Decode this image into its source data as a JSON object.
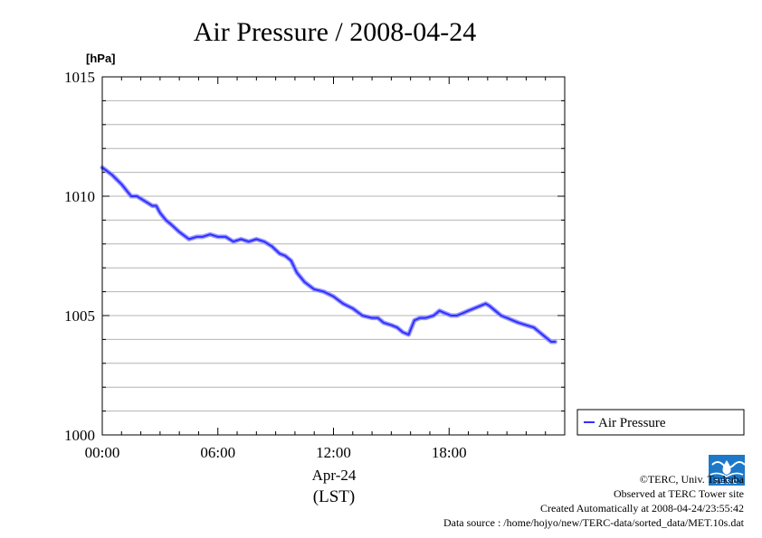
{
  "chart_data": {
    "type": "line",
    "title": "Air Pressure / 2008-04-24",
    "ylabel": "[hPa]",
    "ylim": [
      1000,
      1015
    ],
    "xlim": [
      0,
      24
    ],
    "x_tick_labels": [
      "00:00",
      "06:00",
      "12:00",
      "18:00"
    ],
    "x_tick_values": [
      0,
      6,
      12,
      18
    ],
    "y_tick_labels": [
      "1000",
      "1005",
      "1010",
      "1015"
    ],
    "y_tick_values": [
      1000,
      1005,
      1010,
      1015
    ],
    "xlabel_date": "Apr-24",
    "xlabel_tz": "(LST)",
    "grid": true,
    "legend_position": "right",
    "series": [
      {
        "name": "Air Pressure",
        "color": "#3030ff",
        "x": [
          0.0,
          0.5,
          1.0,
          1.5,
          1.8,
          2.2,
          2.6,
          2.8,
          3.0,
          3.3,
          3.6,
          4.0,
          4.5,
          4.9,
          5.2,
          5.6,
          6.0,
          6.4,
          6.8,
          7.2,
          7.6,
          8.0,
          8.4,
          8.8,
          9.2,
          9.5,
          9.8,
          10.1,
          10.5,
          11.0,
          11.5,
          12.0,
          12.5,
          13.0,
          13.5,
          14.0,
          14.3,
          14.6,
          15.0,
          15.3,
          15.6,
          15.9,
          16.2,
          16.5,
          16.8,
          17.2,
          17.5,
          17.8,
          18.1,
          18.4,
          18.7,
          19.0,
          19.3,
          19.6,
          19.9,
          20.1,
          20.4,
          20.7,
          21.0,
          21.3,
          21.6,
          22.0,
          22.4,
          22.7,
          23.0,
          23.3,
          23.5
        ],
        "values": [
          1011.2,
          1010.9,
          1010.5,
          1010.0,
          1010.0,
          1009.8,
          1009.6,
          1009.6,
          1009.3,
          1009.0,
          1008.8,
          1008.5,
          1008.2,
          1008.3,
          1008.3,
          1008.4,
          1008.3,
          1008.3,
          1008.1,
          1008.2,
          1008.1,
          1008.2,
          1008.1,
          1007.9,
          1007.6,
          1007.5,
          1007.3,
          1006.8,
          1006.4,
          1006.1,
          1006.0,
          1005.8,
          1005.5,
          1005.3,
          1005.0,
          1004.9,
          1004.9,
          1004.7,
          1004.6,
          1004.5,
          1004.3,
          1004.2,
          1004.8,
          1004.9,
          1004.9,
          1005.0,
          1005.2,
          1005.1,
          1005.0,
          1005.0,
          1005.1,
          1005.2,
          1005.3,
          1005.4,
          1005.5,
          1005.4,
          1005.2,
          1005.0,
          1004.9,
          1004.8,
          1004.7,
          1004.6,
          1004.5,
          1004.3,
          1004.1,
          1003.9,
          1003.9
        ]
      }
    ]
  },
  "footer": {
    "copyright": "©TERC, Univ. Tsukuba",
    "observed": "Observed at TERC Tower site",
    "created": "Created Automatically at 2008-04-24/23:55:42",
    "source": "Data source : /home/hojyo/new/TERC-data/sorted_data/MET.10s.dat",
    "logo_text": "TERC",
    "logo_color": "#1e78c8"
  }
}
